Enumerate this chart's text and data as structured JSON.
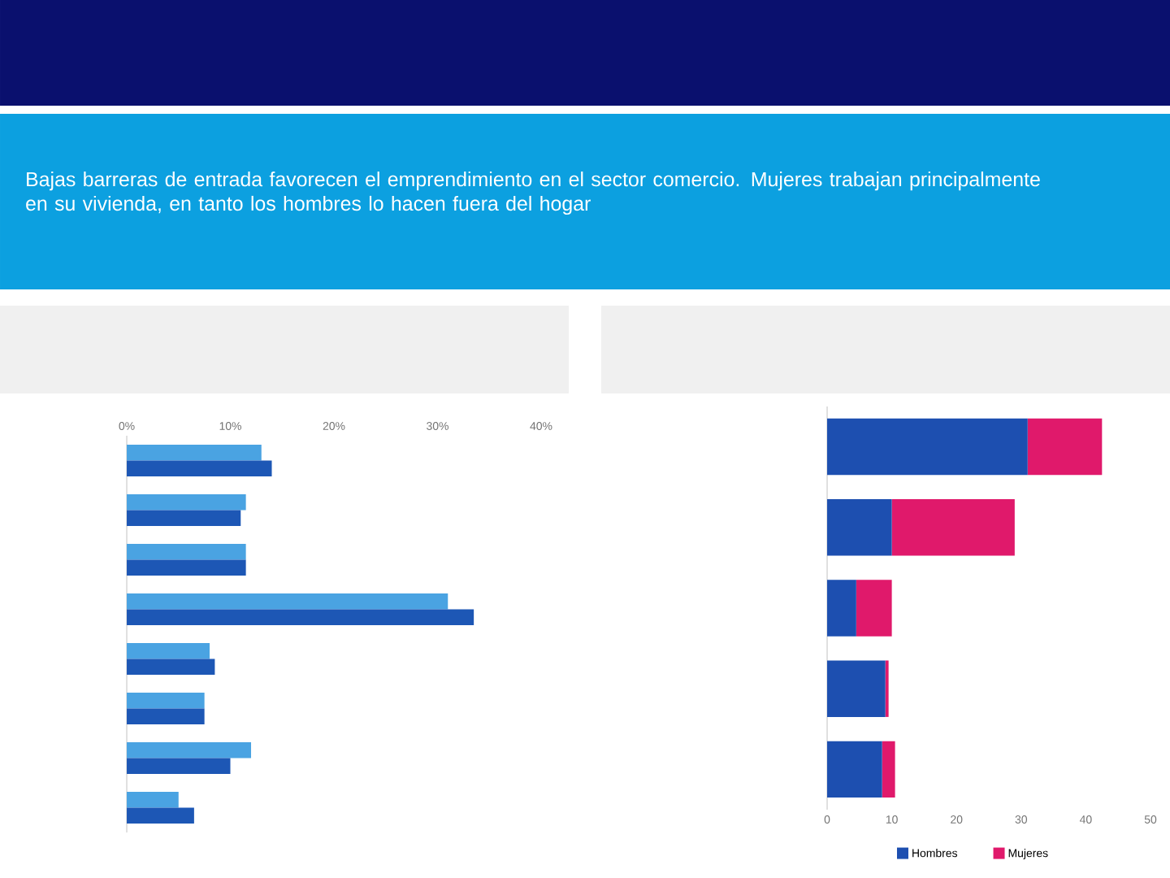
{
  "chart_data": [
    {
      "type": "bar",
      "orientation": "horizontal",
      "title": "Bajas barreras de entrada favorecen el emprendimiento en el sector comercio. Mujeres trabajan principalmente en su vivienda, en tanto los hombres lo hacen fuera del hogar",
      "categories": [
        null,
        null,
        null,
        null,
        null,
        null,
        null,
        null
      ],
      "series": [
        {
          "color": "#4aa3e2",
          "values": [
            13,
            11.5,
            11.5,
            31,
            8,
            7.5,
            12,
            5
          ]
        },
        {
          "color": "#1d57b5",
          "values": [
            14,
            11,
            11.5,
            33.5,
            8.5,
            7.5,
            10,
            6.5
          ]
        }
      ],
      "xlim": [
        0,
        40
      ],
      "xticks": [
        {
          "value": 0,
          "label": "0%"
        },
        {
          "value": 10,
          "label": "10%"
        },
        {
          "value": 20,
          "label": "20%"
        },
        {
          "value": 30,
          "label": "30%"
        },
        {
          "value": 40,
          "label": "40%"
        }
      ]
    },
    {
      "type": "bar",
      "orientation": "horizontal",
      "stacked": true,
      "categories": [
        null,
        null,
        null,
        null,
        null
      ],
      "series": [
        {
          "name": "Hombres",
          "color": "#1d4fb0",
          "values": [
            31,
            10,
            4.5,
            9,
            8.5
          ]
        },
        {
          "name": "Mujeres",
          "color": "#e0196b",
          "values": [
            11.5,
            19,
            5.5,
            0.5,
            2
          ]
        }
      ],
      "xlim": [
        0,
        50
      ],
      "xticks": [
        0,
        10,
        20,
        30,
        40,
        50
      ],
      "legend": "bottom"
    }
  ]
}
